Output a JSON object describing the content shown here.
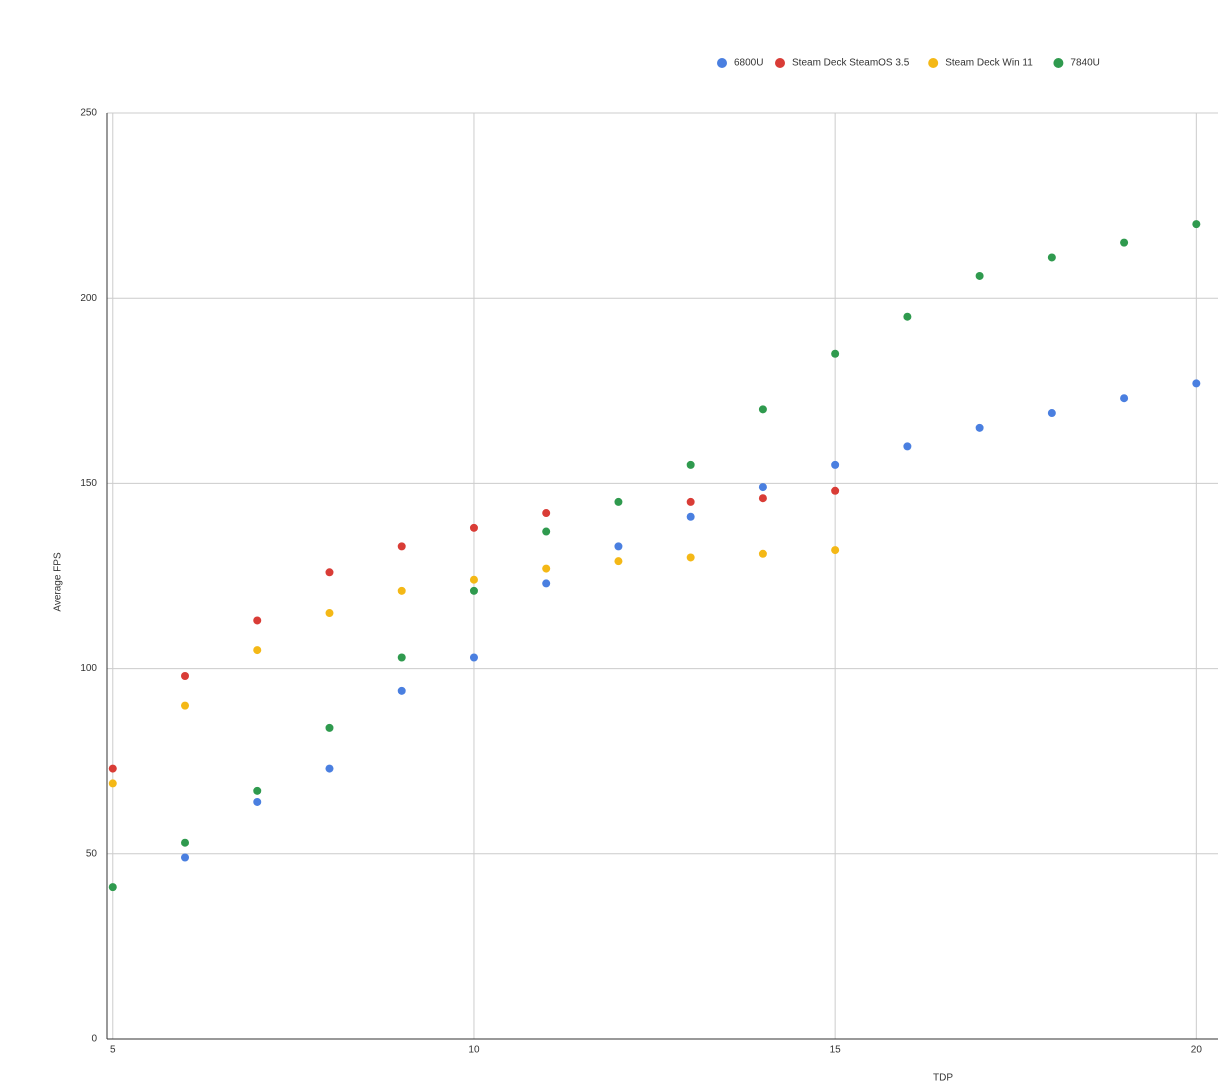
{
  "chart_data": {
    "type": "scatter",
    "x_label": "TDP",
    "y_label": "Average FPS",
    "x": [
      5,
      6,
      7,
      8,
      9,
      10,
      11,
      12,
      13,
      14,
      15,
      16,
      17,
      18,
      19,
      20
    ],
    "series": [
      {
        "name": "6800U",
        "color": "#4a7fe0",
        "values": [
          null,
          49,
          64,
          73,
          94,
          103,
          123,
          133,
          141,
          149,
          155,
          160,
          165,
          169,
          173,
          177
        ]
      },
      {
        "name": "Steam Deck SteamOS 3.5",
        "color": "#d93c36",
        "values": [
          73,
          98,
          113,
          126,
          133,
          138,
          142,
          null,
          145,
          146,
          148,
          null,
          null,
          null,
          null,
          null
        ]
      },
      {
        "name": "Steam Deck Win 11",
        "color": "#f4b816",
        "values": [
          69,
          90,
          105,
          115,
          121,
          124,
          127,
          129,
          130,
          131,
          132,
          null,
          null,
          null,
          null,
          null
        ]
      },
      {
        "name": "7840U",
        "color": "#2f9a4e",
        "values": [
          41,
          53,
          67,
          84,
          103,
          121,
          137,
          145,
          155,
          170,
          185,
          195,
          206,
          211,
          215,
          220
        ]
      }
    ],
    "xlim": [
      4.92,
      20.3
    ],
    "xticks": [
      5,
      10,
      15,
      20
    ],
    "ylim": [
      0,
      250
    ],
    "yticks": [
      0,
      50,
      100,
      150,
      200,
      250
    ],
    "grid": true,
    "legend": "top"
  }
}
